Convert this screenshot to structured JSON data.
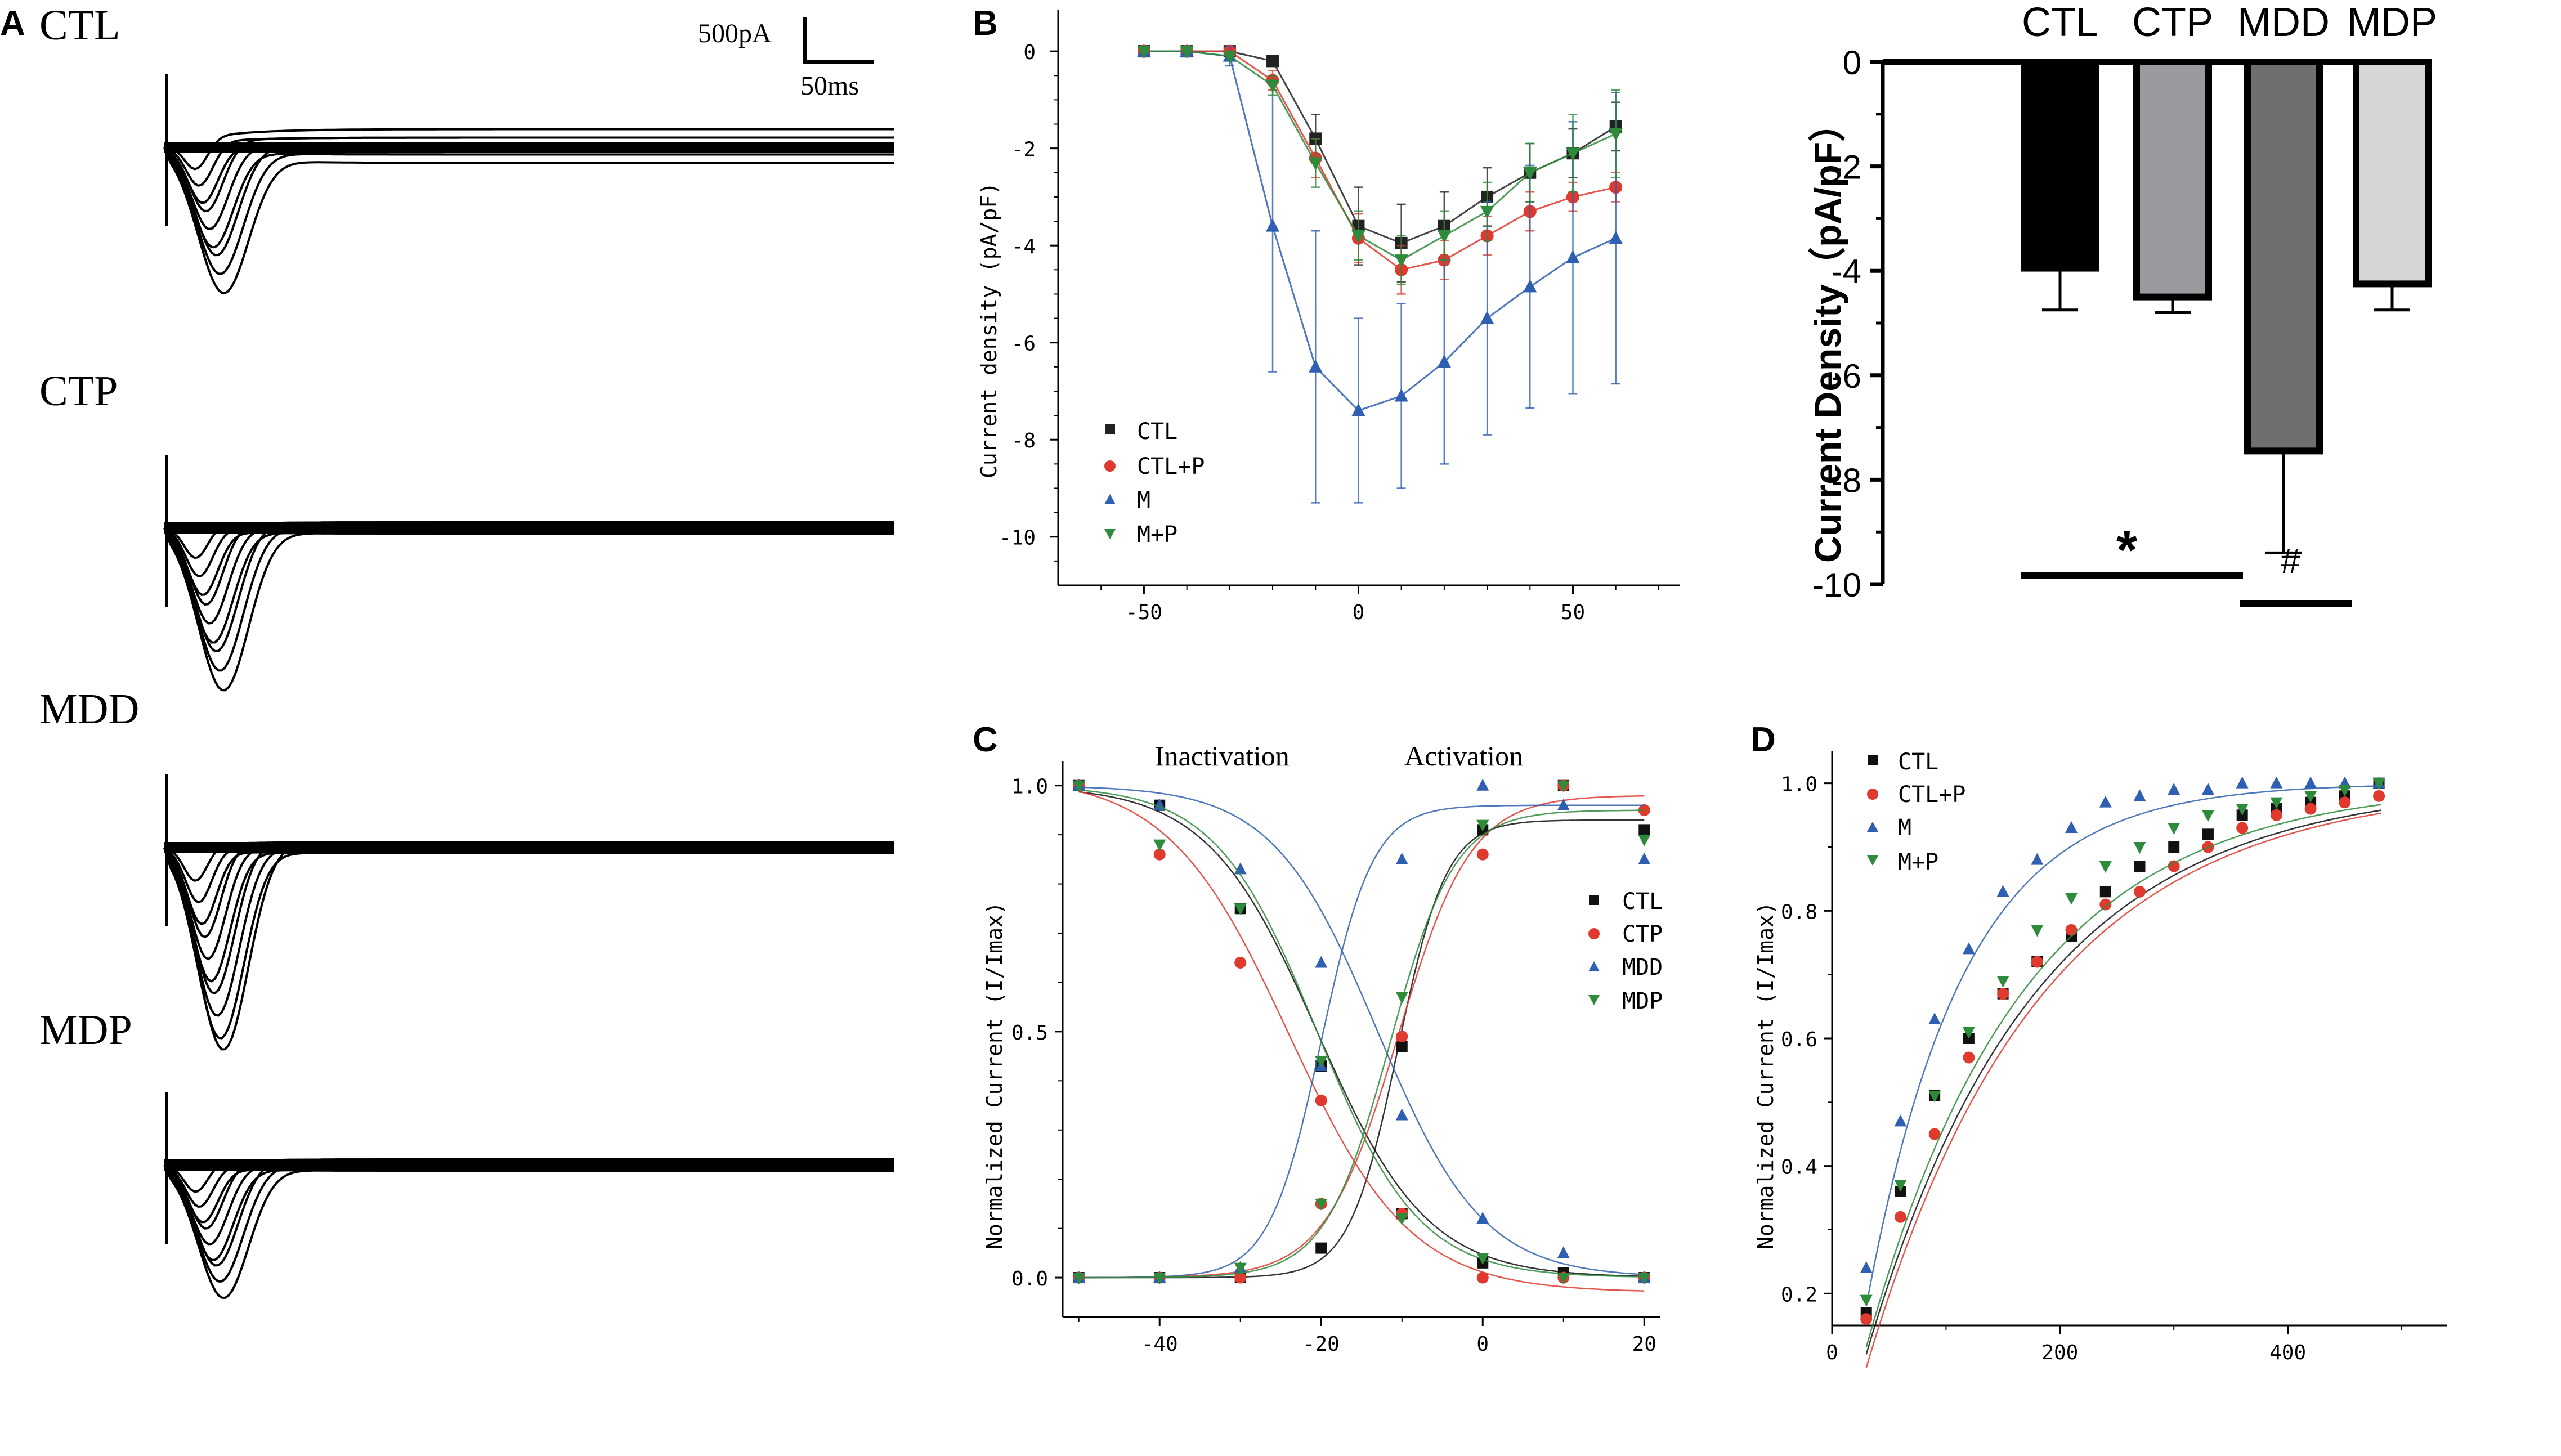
{
  "figure": {
    "panel_labels": {
      "a": "A",
      "b": "B",
      "c": "C",
      "d": "D"
    }
  },
  "chart_data": [
    {
      "id": "A",
      "type": "line",
      "description": "Representative sodium current traces",
      "rows": [
        {
          "label": "CTL",
          "peak": 1.0,
          "traces": 9
        },
        {
          "label": "CTP",
          "peak": 1.2,
          "traces": 9
        },
        {
          "label": "MDD",
          "peak": 1.6,
          "traces": 10
        },
        {
          "label": "MDP",
          "peak": 0.95,
          "traces": 9
        }
      ],
      "scale_bar": {
        "y_label": "500pA",
        "x_label": "50ms"
      }
    },
    {
      "id": "B",
      "type": "line",
      "title": "",
      "xlabel": "",
      "ylabel": "Current density (pA/pF)",
      "xlim": [
        -70,
        75
      ],
      "ylim": [
        -11,
        0.5
      ],
      "xticks": [
        -50,
        0,
        50
      ],
      "yticks": [
        0,
        -2,
        -4,
        -6,
        -8,
        -10
      ],
      "x": [
        -50,
        -40,
        -30,
        -20,
        -10,
        0,
        10,
        20,
        30,
        40,
        50,
        60
      ],
      "series": [
        {
          "name": "CTL",
          "color": "#222222",
          "marker": "square",
          "values": [
            0,
            0,
            0,
            -0.2,
            -1.8,
            -3.6,
            -3.95,
            -3.6,
            -3.0,
            -2.5,
            -2.1,
            -1.55
          ],
          "err": [
            0,
            0,
            0,
            0.1,
            0.5,
            0.8,
            0.8,
            0.7,
            0.6,
            0.6,
            0.5,
            0.5
          ]
        },
        {
          "name": "CTL+P",
          "color": "#e03a2f",
          "marker": "circle",
          "values": [
            0,
            0,
            0,
            -0.6,
            -2.2,
            -3.85,
            -4.5,
            -4.3,
            -3.8,
            -3.3,
            -3.0,
            -2.8
          ],
          "err": [
            0,
            0,
            0,
            0.2,
            0.4,
            0.5,
            0.5,
            0.4,
            0.4,
            0.4,
            0.3,
            0.3
          ]
        },
        {
          "name": "M",
          "color": "#2f5fb0",
          "marker": "triangle-up",
          "values": [
            0,
            0,
            -0.1,
            -3.6,
            -6.5,
            -7.4,
            -7.1,
            -6.4,
            -5.5,
            -4.85,
            -4.25,
            -3.85
          ],
          "err": [
            0,
            0,
            0.2,
            3.0,
            2.8,
            1.9,
            1.9,
            2.1,
            2.4,
            2.5,
            2.8,
            3.0
          ]
        },
        {
          "name": "M+P",
          "color": "#2e8b3c",
          "marker": "triangle-down",
          "values": [
            0,
            0,
            -0.1,
            -0.7,
            -2.3,
            -3.8,
            -4.3,
            -3.8,
            -3.3,
            -2.5,
            -2.1,
            -1.7
          ],
          "err": [
            0,
            0,
            0,
            0.2,
            0.5,
            0.5,
            0.5,
            0.5,
            0.6,
            0.6,
            0.8,
            0.9
          ]
        }
      ]
    },
    {
      "id": "B2",
      "type": "bar",
      "ylabel": "Current Density（pA/pF）",
      "ylim": [
        -10,
        0
      ],
      "yticks": [
        0,
        -2,
        -4,
        -6,
        -8,
        -10
      ],
      "categories": [
        "CTL",
        "CTP",
        "MDD",
        "MDP"
      ],
      "values": [
        -3.95,
        -4.5,
        -7.45,
        -4.25
      ],
      "errors": [
        0.8,
        0.3,
        1.95,
        0.5
      ],
      "colors": [
        "#000000",
        "#9a9a9e",
        "#6f6f6f",
        "#d6d6d6"
      ],
      "annotations": [
        {
          "text": "*",
          "between": [
            "CTL",
            "MDD"
          ]
        },
        {
          "text": "#",
          "between": [
            "MDD",
            "MDP"
          ]
        }
      ]
    },
    {
      "id": "C",
      "type": "scatter",
      "ylabel": "Normalized Current (I/Imax)",
      "xlim": [
        -52,
        22
      ],
      "ylim": [
        -0.08,
        1.05
      ],
      "xticks": [
        -40,
        -20,
        0,
        20
      ],
      "yticks": [
        0.0,
        0.5,
        1.0
      ],
      "annotations": [
        "Inactivation",
        "Activation"
      ],
      "x": [
        -50,
        -40,
        -30,
        -20,
        -10,
        0,
        10,
        20
      ],
      "series": [
        {
          "name": "CTL",
          "color": "#111111",
          "marker": "square",
          "inactivation": [
            1.0,
            0.96,
            0.75,
            0.43,
            0.13,
            0.03,
            0.01,
            0.0
          ],
          "activation": [
            0.0,
            0.0,
            0.0,
            0.06,
            0.47,
            0.91,
            1.0,
            0.91
          ],
          "fit_inact": {
            "vh": -20.5,
            "k": 6.8,
            "top": 1.0,
            "bot": 0.0
          },
          "fit_act": {
            "vh": -10.5,
            "k": 3.0,
            "top": 0.93,
            "bot": 0.0
          }
        },
        {
          "name": "CTP",
          "color": "#e03a2f",
          "marker": "circle",
          "inactivation": [
            1.0,
            0.86,
            0.64,
            0.36,
            0.13,
            0.0,
            0.0,
            0.0
          ],
          "activation": [
            0.0,
            0.0,
            0.0,
            0.15,
            0.49,
            0.86,
            1.0,
            0.95
          ],
          "fit_inact": {
            "vh": -24,
            "k": 7.5,
            "top": 1.02,
            "bot": -0.03
          },
          "fit_act": {
            "vh": -10.5,
            "k": 4.5,
            "top": 0.98,
            "bot": 0.0
          }
        },
        {
          "name": "MDD",
          "color": "#2f5fb0",
          "marker": "triangle-up",
          "inactivation": [
            1.0,
            0.96,
            0.83,
            0.64,
            0.33,
            0.12,
            0.05,
            0.0
          ],
          "activation": [
            0.0,
            0.0,
            0.02,
            0.43,
            0.85,
            1.0,
            0.96,
            0.85
          ],
          "fit_inact": {
            "vh": -13,
            "k": 6.5,
            "top": 1.0,
            "bot": 0.0
          },
          "fit_act": {
            "vh": -20,
            "k": 3.2,
            "top": 0.96,
            "bot": 0.0
          }
        },
        {
          "name": "MDP",
          "color": "#2e8b3c",
          "marker": "triangle-down",
          "inactivation": [
            1.0,
            0.88,
            0.75,
            0.44,
            0.12,
            0.04,
            0.0,
            0.0
          ],
          "activation": [
            0.0,
            0.0,
            0.02,
            0.15,
            0.57,
            0.92,
            1.0,
            0.89
          ],
          "fit_inact": {
            "vh": -20.5,
            "k": 6.3,
            "top": 1.0,
            "bot": 0.0
          },
          "fit_act": {
            "vh": -11.5,
            "k": 4.0,
            "top": 0.95,
            "bot": 0.0
          }
        }
      ]
    },
    {
      "id": "D",
      "type": "scatter",
      "ylabel": "Normalized Current (I/Imax)",
      "xlim": [
        0,
        540
      ],
      "ylim": [
        0.15,
        1.05
      ],
      "xticks": [
        0,
        200,
        400
      ],
      "yticks": [
        0.2,
        0.4,
        0.6,
        0.8,
        1.0
      ],
      "x": [
        30,
        60,
        90,
        120,
        150,
        180,
        210,
        240,
        270,
        300,
        330,
        360,
        390,
        420,
        450,
        480
      ],
      "series": [
        {
          "name": "CTL",
          "color": "#111111",
          "marker": "square",
          "values": [
            0.17,
            0.36,
            0.51,
            0.6,
            0.67,
            0.72,
            0.76,
            0.83,
            0.87,
            0.9,
            0.92,
            0.95,
            0.96,
            0.97,
            0.98,
            1.0
          ],
          "fit": {
            "A": 1.06,
            "tau": 148,
            "y0": -0.06
          }
        },
        {
          "name": "CTL+P",
          "color": "#e03a2f",
          "marker": "circle",
          "values": [
            0.16,
            0.32,
            0.45,
            0.57,
            0.67,
            0.72,
            0.77,
            0.81,
            0.83,
            0.87,
            0.9,
            0.93,
            0.95,
            0.96,
            0.97,
            0.98
          ],
          "fit": {
            "A": 1.08,
            "tau": 152,
            "y0": -0.08
          }
        },
        {
          "name": "M",
          "color": "#2f5fb0",
          "marker": "triangle-up",
          "values": [
            0.24,
            0.47,
            0.63,
            0.74,
            0.83,
            0.88,
            0.93,
            0.97,
            0.98,
            0.99,
            0.99,
            1.0,
            1.0,
            1.0,
            1.0,
            1.0
          ],
          "fit": {
            "A": 1.1,
            "tau": 85,
            "y0": -0.1
          }
        },
        {
          "name": "M+P",
          "color": "#2e8b3c",
          "marker": "triangle-down",
          "values": [
            0.19,
            0.37,
            0.51,
            0.61,
            0.69,
            0.77,
            0.82,
            0.87,
            0.9,
            0.93,
            0.95,
            0.96,
            0.97,
            0.98,
            0.99,
            1.0
          ],
          "fit": {
            "A": 1.06,
            "tau": 138,
            "y0": -0.06
          }
        }
      ]
    }
  ]
}
